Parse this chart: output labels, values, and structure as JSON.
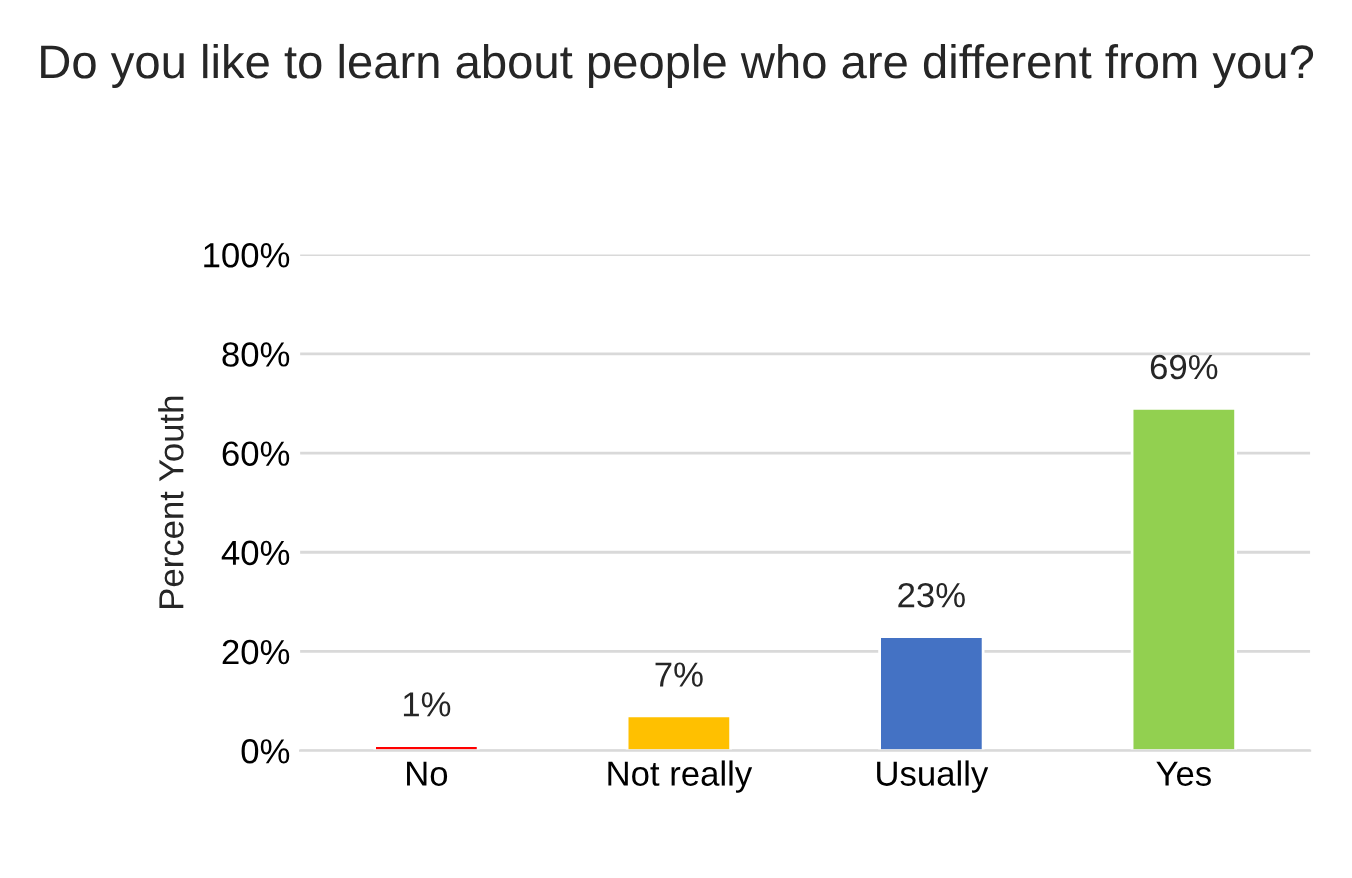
{
  "chart_data": {
    "type": "bar",
    "title": "Do you like to learn about people who are different from you?",
    "ylabel": "Percent Youth",
    "categories": [
      "No",
      "Not really",
      "Usually",
      "Yes"
    ],
    "values": [
      1,
      7,
      23,
      69
    ],
    "colors": [
      "#ff0000",
      "#ffc000",
      "#4472c4",
      "#92d050"
    ],
    "value_labels": [
      "1%",
      "7%",
      "23%",
      "69%"
    ],
    "ylim": [
      0,
      100
    ],
    "yticks": [
      {
        "value": 0,
        "label": "0%"
      },
      {
        "value": 20,
        "label": "20%"
      },
      {
        "value": 40,
        "label": "40%"
      },
      {
        "value": 60,
        "label": "60%"
      },
      {
        "value": 80,
        "label": "80%"
      },
      {
        "value": 100,
        "label": "100%"
      }
    ],
    "grid": "y",
    "legend": false
  }
}
